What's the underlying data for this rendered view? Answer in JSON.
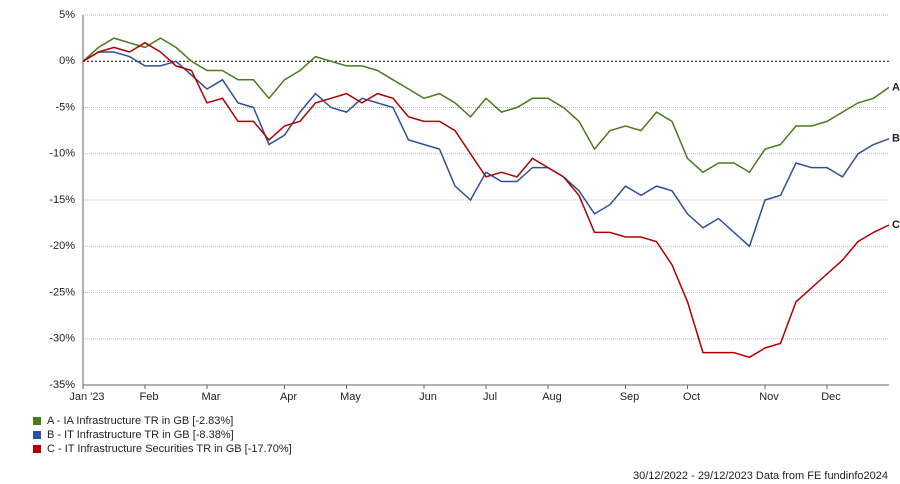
{
  "chart_data": {
    "type": "line",
    "categories": [
      "Jan '23",
      null,
      null,
      null,
      "Feb",
      null,
      null,
      null,
      "Mar",
      null,
      null,
      null,
      null,
      "Apr",
      null,
      null,
      null,
      "May",
      null,
      null,
      null,
      null,
      "Jun",
      null,
      null,
      null,
      "Jul",
      null,
      null,
      null,
      "Aug",
      null,
      null,
      null,
      null,
      "Sep",
      null,
      null,
      null,
      "Oct",
      null,
      null,
      null,
      null,
      "Nov",
      null,
      null,
      null,
      "Dec",
      null,
      null,
      null,
      null
    ],
    "series": [
      {
        "name": "A - IA Infrastructure TR in GB [-2.83%]",
        "end_label": "A",
        "color": "#4a7a1e",
        "values": [
          0,
          1.5,
          2.5,
          2,
          1.5,
          2.5,
          1.5,
          0,
          -1,
          -1,
          -2,
          -2,
          -4,
          -2,
          -1,
          0.5,
          0,
          -0.5,
          -0.5,
          -1,
          -2,
          -3,
          -4,
          -3.5,
          -4.5,
          -6,
          -4,
          -5.5,
          -5,
          -4,
          -4,
          -5,
          -6.5,
          -9.5,
          -7.5,
          -7,
          -7.5,
          -5.5,
          -6.5,
          -10.5,
          -12,
          -11,
          -11,
          -12,
          -9.5,
          -9,
          -7,
          -7,
          -6.5,
          -5.5,
          -4.5,
          -4,
          -2.83
        ]
      },
      {
        "name": "B - IT Infrastructure TR in GB [-8.38%]",
        "end_label": "B",
        "color": "#2e4fa0",
        "values": [
          0,
          1,
          1,
          0.5,
          -0.5,
          -0.5,
          0,
          -1.5,
          -3,
          -2,
          -4.5,
          -5,
          -9,
          -8,
          -5.5,
          -3.5,
          -5,
          -5.5,
          -4,
          -4.5,
          -5,
          -8.5,
          -9,
          -9.5,
          -13.5,
          -15,
          -12,
          -13,
          -13,
          -11.5,
          -11.5,
          -12.5,
          -14,
          -16.5,
          -15.5,
          -13.5,
          -14.5,
          -13.5,
          -14,
          -16.5,
          -18,
          -17,
          -18.5,
          -20,
          -15,
          -14.5,
          -11,
          -11.5,
          -11.5,
          -12.5,
          -10,
          -9,
          -8.38
        ]
      },
      {
        "name": "C - IT Infrastructure Securities TR in GB [-17.70%]",
        "end_label": "C",
        "color": "#b00000",
        "values": [
          0,
          1,
          1.5,
          1,
          2,
          1,
          -0.5,
          -1,
          -4.5,
          -4,
          -6.5,
          -6.5,
          -8.5,
          -7,
          -6.5,
          -4.5,
          -4,
          -3.5,
          -4.5,
          -3.5,
          -4,
          -6,
          -6.5,
          -6.5,
          -7.5,
          -10,
          -12.5,
          -12,
          -12.5,
          -10.5,
          -11.5,
          -12.5,
          -14.5,
          -18.5,
          -18.5,
          -19,
          -19,
          -19.5,
          -22,
          -26,
          -31.5,
          -31.5,
          -31.5,
          -32,
          -31,
          -30.5,
          -26,
          -24.5,
          -23,
          -21.5,
          -19.5,
          -18.5,
          -17.7
        ]
      }
    ],
    "ylim": [
      -35,
      5
    ],
    "yticks": [
      {
        "value": 5,
        "label": "5%"
      },
      {
        "value": 0,
        "label": "0%"
      },
      {
        "value": -5,
        "label": "-5%"
      },
      {
        "value": -10,
        "label": "-10%"
      },
      {
        "value": -15,
        "label": "-15%"
      },
      {
        "value": -20,
        "label": "-20%"
      },
      {
        "value": -25,
        "label": "-25%"
      },
      {
        "value": -30,
        "label": "-30%"
      },
      {
        "value": -35,
        "label": "-35%"
      }
    ],
    "grid": true,
    "footer": "30/12/2022 - 29/12/2023 Data from FE fundinfo2024"
  }
}
